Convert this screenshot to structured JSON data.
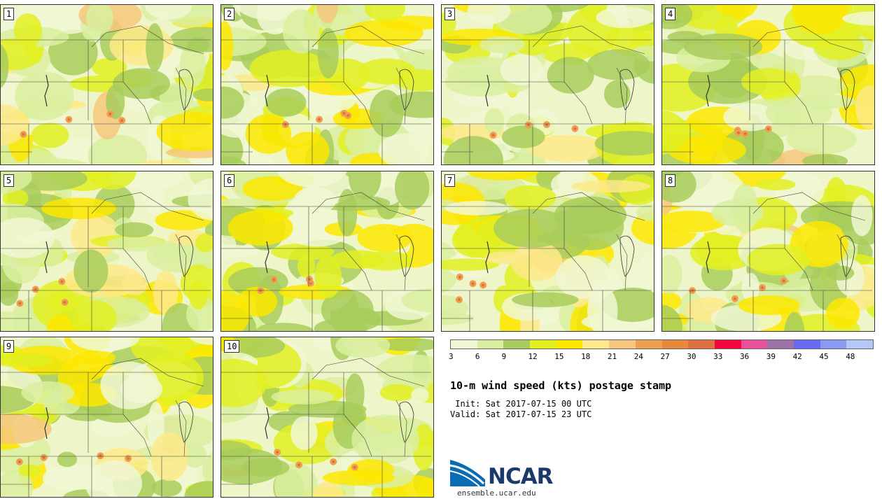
{
  "panels": [
    {
      "label": "1"
    },
    {
      "label": "2"
    },
    {
      "label": "3"
    },
    {
      "label": "4"
    },
    {
      "label": "5"
    },
    {
      "label": "6"
    },
    {
      "label": "7"
    },
    {
      "label": "8"
    },
    {
      "label": "9"
    },
    {
      "label": "10"
    }
  ],
  "colorbar": {
    "colors": [
      "#f0f7d4",
      "#d9efa0",
      "#a8cc5c",
      "#e2f022",
      "#fce800",
      "#fde98a",
      "#f6c77d",
      "#eea050",
      "#e8883a",
      "#dd7040",
      "#f0083c",
      "#e8509a",
      "#9c72a8",
      "#6a6af0",
      "#8a99f4",
      "#b4c8f8"
    ],
    "tick_labels": [
      "3",
      "6",
      "9",
      "12",
      "15",
      "18",
      "21",
      "24",
      "27",
      "30",
      "33",
      "36",
      "39",
      "42",
      "45",
      "48"
    ]
  },
  "title": "10-m wind speed (kts) postage stamp",
  "init": " Init: Sat 2017-07-15 00 UTC",
  "valid": "Valid: Sat 2017-07-15 23 UTC",
  "logo": {
    "name": "NCAR",
    "url": "ensemble.ucar.edu"
  }
}
